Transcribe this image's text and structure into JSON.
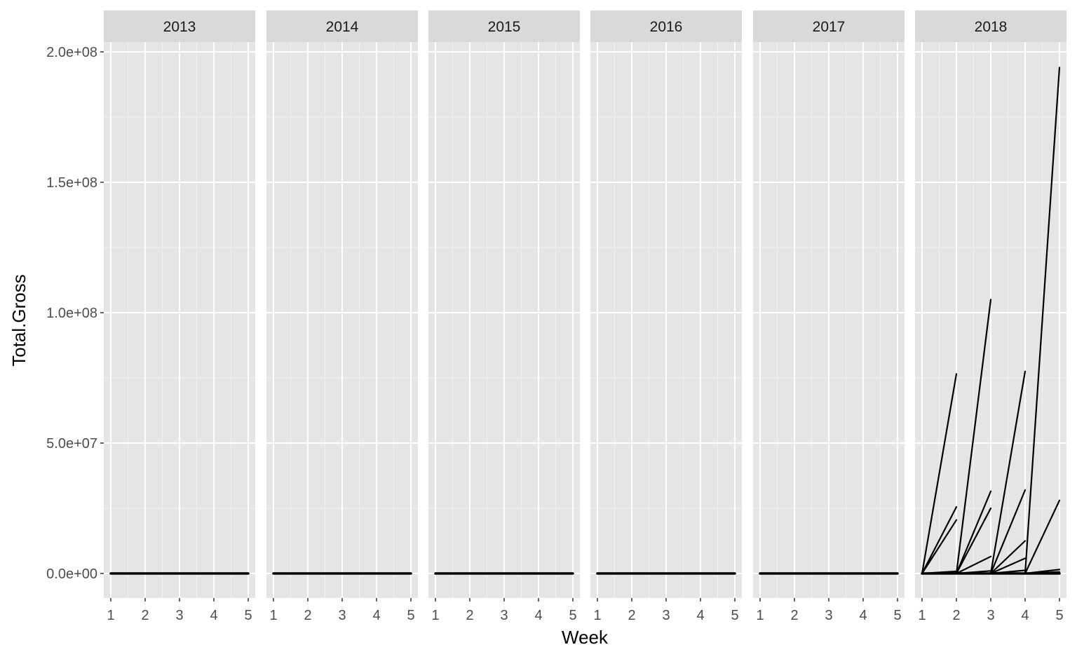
{
  "chart_data": {
    "type": "line",
    "xlabel": "Week",
    "ylabel": "Total.Gross",
    "xlim": [
      1,
      5
    ],
    "ylim": [
      -8500000,
      213000000
    ],
    "x_ticks": [
      1,
      2,
      3,
      4,
      5
    ],
    "x_tick_labels": [
      "1",
      "2",
      "3",
      "4",
      "5"
    ],
    "y_ticks": [
      0,
      50000000,
      100000000,
      150000000,
      200000000
    ],
    "y_tick_labels": [
      "0.0e+00",
      "5.0e+07",
      "1.0e+08",
      "1.5e+08",
      "2.0e+08"
    ],
    "grid": true,
    "facets": [
      {
        "label": "2013",
        "series": [
          {
            "x": [
              1,
              2,
              3,
              4,
              5
            ],
            "y": [
              0,
              0,
              0,
              0,
              0
            ]
          }
        ]
      },
      {
        "label": "2014",
        "series": [
          {
            "x": [
              1,
              2,
              3,
              4,
              5
            ],
            "y": [
              0,
              0,
              0,
              0,
              0
            ]
          }
        ]
      },
      {
        "label": "2015",
        "series": [
          {
            "x": [
              1,
              2,
              3,
              4,
              5
            ],
            "y": [
              0,
              0,
              0,
              0,
              0
            ]
          }
        ]
      },
      {
        "label": "2016",
        "series": [
          {
            "x": [
              1,
              2,
              3,
              4,
              5
            ],
            "y": [
              0,
              0,
              0,
              0,
              0
            ]
          }
        ]
      },
      {
        "label": "2017",
        "series": [
          {
            "x": [
              1,
              2,
              3,
              4,
              5
            ],
            "y": [
              0,
              0,
              0,
              0,
              0
            ]
          }
        ]
      },
      {
        "label": "2018",
        "series": [
          {
            "x": [
              1,
              2
            ],
            "y": [
              0,
              76500000
            ]
          },
          {
            "x": [
              1,
              2
            ],
            "y": [
              0,
              25500000
            ]
          },
          {
            "x": [
              1,
              2
            ],
            "y": [
              0,
              20500000
            ]
          },
          {
            "x": [
              1,
              2
            ],
            "y": [
              0,
              800000
            ]
          },
          {
            "x": [
              2,
              3
            ],
            "y": [
              0,
              105000000
            ]
          },
          {
            "x": [
              2,
              3
            ],
            "y": [
              0,
              31500000
            ]
          },
          {
            "x": [
              2,
              3
            ],
            "y": [
              0,
              25000000
            ]
          },
          {
            "x": [
              2,
              3
            ],
            "y": [
              0,
              6500000
            ]
          },
          {
            "x": [
              2,
              3
            ],
            "y": [
              0,
              1000000
            ]
          },
          {
            "x": [
              3,
              4
            ],
            "y": [
              0,
              77500000
            ]
          },
          {
            "x": [
              3,
              4
            ],
            "y": [
              0,
              32000000
            ]
          },
          {
            "x": [
              3,
              4
            ],
            "y": [
              0,
              12500000
            ]
          },
          {
            "x": [
              3,
              4
            ],
            "y": [
              0,
              5800000
            ]
          },
          {
            "x": [
              3,
              4
            ],
            "y": [
              0,
              1200000
            ]
          },
          {
            "x": [
              4,
              5
            ],
            "y": [
              0,
              194000000
            ]
          },
          {
            "x": [
              4,
              5
            ],
            "y": [
              0,
              28000000
            ]
          },
          {
            "x": [
              4,
              5
            ],
            "y": [
              0,
              1500000
            ]
          },
          {
            "x": [
              4,
              5
            ],
            "y": [
              0,
              600000
            ]
          },
          {
            "x": [
              1,
              2,
              3,
              4,
              5
            ],
            "y": [
              0,
              0,
              0,
              0,
              0
            ]
          }
        ]
      }
    ]
  },
  "colors": {
    "panel_background": "#e5e5e5",
    "grid_major": "#ffffff",
    "grid_minor": "#f2f2f2",
    "strip_background": "#d9d9d9",
    "line": "#000000"
  }
}
